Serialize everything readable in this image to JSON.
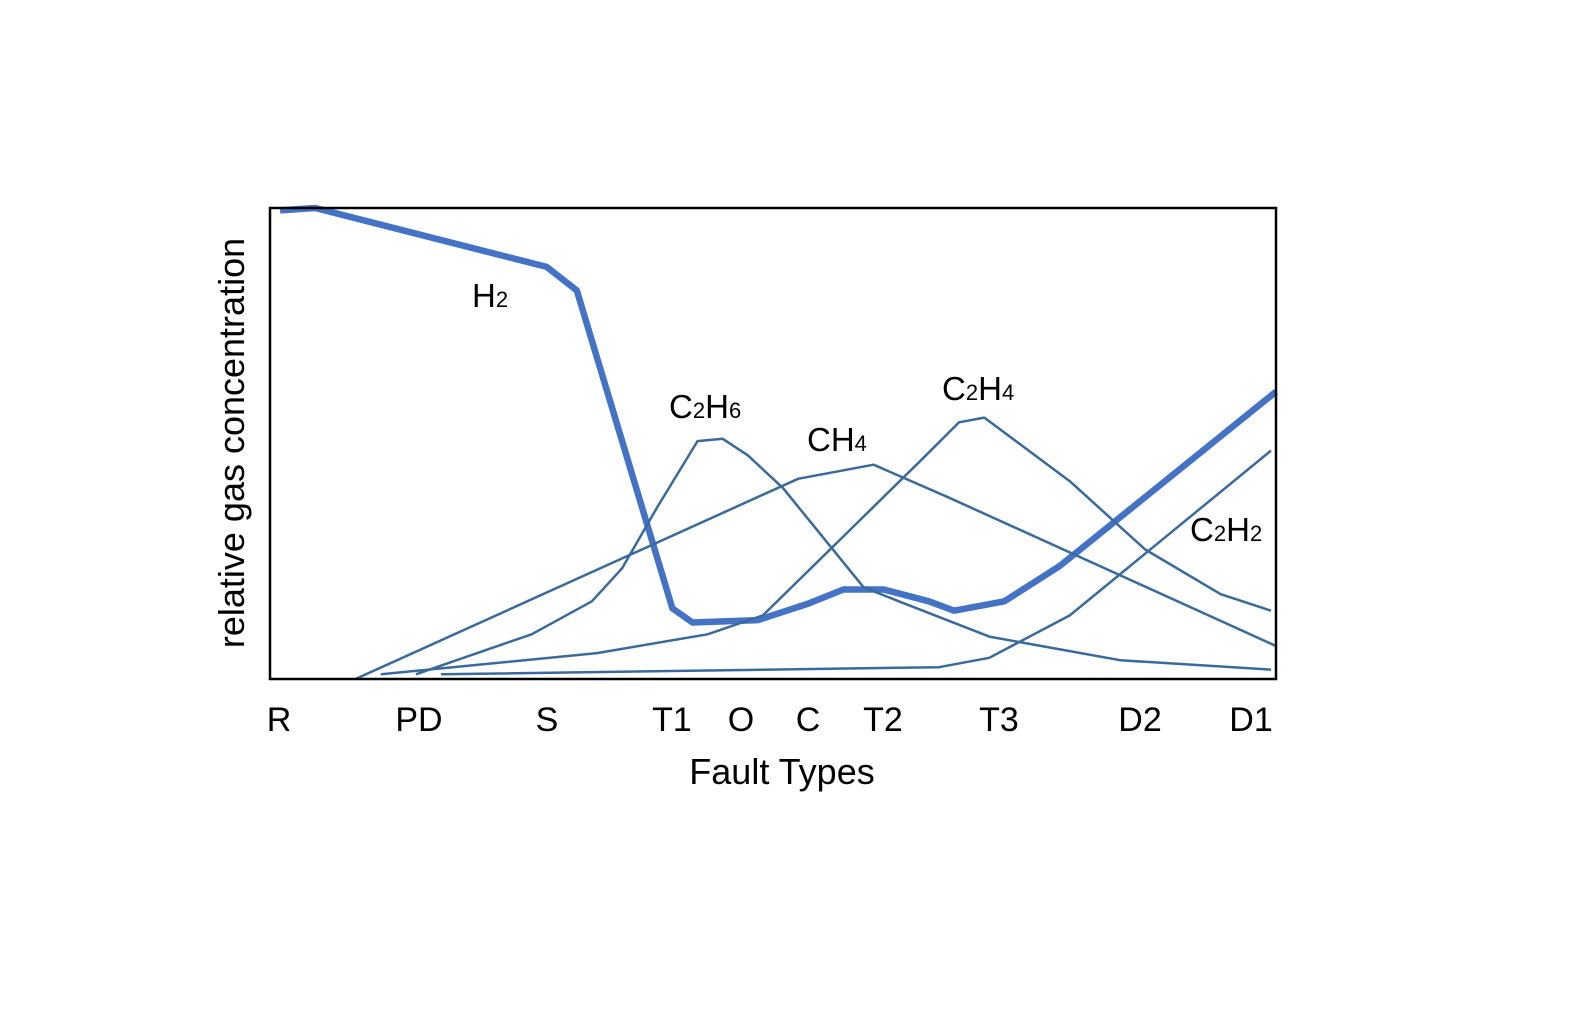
{
  "chart_data": {
    "type": "line",
    "title": "",
    "xlabel": "Fault Types",
    "ylabel": "relative gas concentration",
    "categories": [
      "R",
      "PD",
      "S",
      "T1",
      "O",
      "C",
      "T2",
      "T3",
      "D2",
      "D1"
    ],
    "xlim": [
      0,
      100
    ],
    "ylim": [
      0,
      100
    ],
    "grid": false,
    "legend": "none",
    "colors": {
      "h2": "#4472C4",
      "other": "#3A6A9B",
      "frame": "#000000"
    },
    "series": [
      {
        "name": "H2",
        "label_main": "H",
        "label_sub": [
          "2"
        ],
        "emphasis": true,
        "x": [
          1,
          4.5,
          27.5,
          30.5,
          40,
          42,
          48.5,
          53.5,
          57,
          61,
          65.5,
          68,
          73,
          78.5,
          100
        ],
        "y": [
          99.5,
          100,
          87.5,
          82.5,
          15,
          12,
          12.5,
          16,
          19,
          19,
          16.5,
          14.5,
          16.5,
          24,
          61
        ]
      },
      {
        "name": "C2H6",
        "label_main": "C H",
        "label_sub": [
          "2",
          "6"
        ],
        "emphasis": false,
        "x": [
          14.5,
          26,
          32,
          35,
          38.5,
          42.5,
          45,
          47.5,
          51,
          59,
          62.5,
          71.5,
          84.5,
          99.5
        ],
        "y": [
          1,
          9.5,
          16.5,
          23.5,
          36.5,
          50.5,
          51,
          47.5,
          40.5,
          19.5,
          16.5,
          9,
          4,
          2
        ]
      },
      {
        "name": "CH4",
        "label_main": "CH",
        "label_sub": [
          "4"
        ],
        "emphasis": false,
        "x": [
          8.5,
          52.5,
          60,
          67.5,
          100
        ],
        "y": [
          0,
          42.5,
          45.5,
          38.5,
          7
        ]
      },
      {
        "name": "C2H4",
        "label_main": "C H",
        "label_sub": [
          "2",
          "4"
        ],
        "emphasis": false,
        "x": [
          11,
          32.5,
          43.5,
          49,
          64.5,
          68.5,
          71,
          79.5,
          87,
          94.5,
          99.5
        ],
        "y": [
          1,
          5.5,
          9.5,
          13.5,
          46,
          54.5,
          55.5,
          42,
          27.5,
          18,
          14.5
        ]
      },
      {
        "name": "C2H2",
        "label_main": "C H",
        "label_sub": [
          "2",
          "2"
        ],
        "emphasis": false,
        "x": [
          17,
          66.5,
          71.5,
          79.5,
          99.5
        ],
        "y": [
          1,
          2.5,
          4.5,
          13.5,
          48.5
        ]
      }
    ]
  }
}
